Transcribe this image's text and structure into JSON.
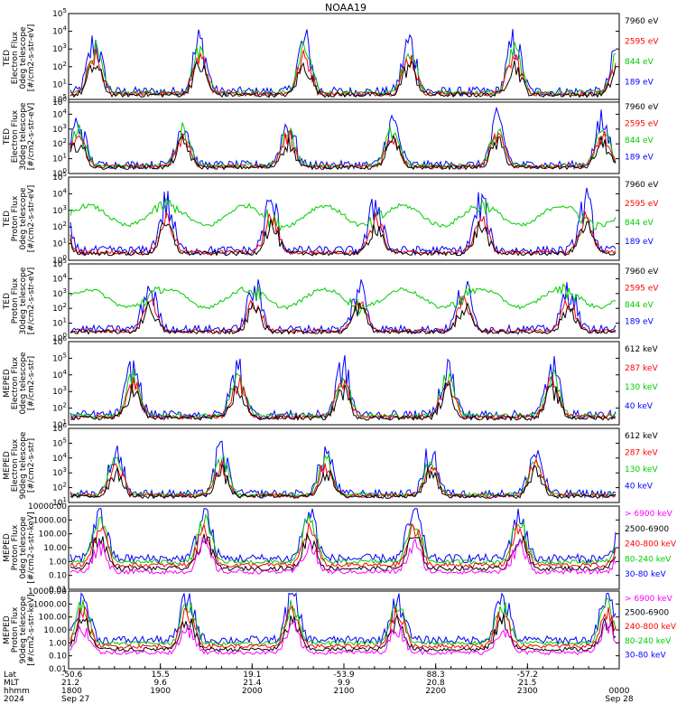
{
  "chart_data": {
    "type": "line",
    "title": "NOAA19",
    "panels": [
      {
        "ylabel": [
          "TED",
          "Electron Flux",
          "0deg telescope",
          "[#/cm2-s-str-eV]"
        ],
        "yticks": [
          "10^0",
          "10^1",
          "10^2",
          "10^3",
          "10^4",
          "10^5"
        ],
        "series": [
          {
            "name": "7960 eV",
            "color": "#000000"
          },
          {
            "name": "2595 eV",
            "color": "#ff0000"
          },
          {
            "name": "844 eV",
            "color": "#00cc00"
          },
          {
            "name": "189 eV",
            "color": "#0000ff"
          }
        ]
      },
      {
        "ylabel": [
          "TED",
          "Electron Flux",
          "30deg telescope",
          "[#/cm2-s-str-eV]"
        ],
        "yticks": [
          "10^0",
          "10^1",
          "10^2",
          "10^3",
          "10^4",
          "10^5"
        ],
        "series": [
          {
            "name": "7960 eV",
            "color": "#000000"
          },
          {
            "name": "2595 eV",
            "color": "#ff0000"
          },
          {
            "name": "844 eV",
            "color": "#00cc00"
          },
          {
            "name": "189 eV",
            "color": "#0000ff"
          }
        ]
      },
      {
        "ylabel": [
          "TED",
          "Proton Flux",
          "0deg telescope",
          "[#/cm2-s-str-eV]"
        ],
        "yticks": [
          "10^0",
          "10^1",
          "10^2",
          "10^3",
          "10^4",
          "10^5"
        ],
        "series": [
          {
            "name": "7960 eV",
            "color": "#000000"
          },
          {
            "name": "2595 eV",
            "color": "#ff0000"
          },
          {
            "name": "844 eV",
            "color": "#00cc00"
          },
          {
            "name": "189 eV",
            "color": "#0000ff"
          }
        ]
      },
      {
        "ylabel": [
          "TED",
          "Proton Flux",
          "30deg telescope",
          "[#/cm2-s-str-eV]"
        ],
        "yticks": [
          "10^0",
          "10^1",
          "10^2",
          "10^3",
          "10^4",
          "10^5"
        ],
        "series": [
          {
            "name": "7960 eV",
            "color": "#000000"
          },
          {
            "name": "2595 eV",
            "color": "#ff0000"
          },
          {
            "name": "844 eV",
            "color": "#00cc00"
          },
          {
            "name": "189 eV",
            "color": "#0000ff"
          }
        ]
      },
      {
        "ylabel": [
          "MEPED",
          "Electron Flux",
          "0deg telescope",
          "[#/cm2-s-str]"
        ],
        "yticks": [
          "10^1",
          "10^2",
          "10^3",
          "10^4",
          "10^5",
          "10^6"
        ],
        "series": [
          {
            "name": "612 keV",
            "color": "#000000"
          },
          {
            "name": "287 keV",
            "color": "#ff0000"
          },
          {
            "name": "130 keV",
            "color": "#00cc00"
          },
          {
            "name": "40 keV",
            "color": "#0000ff"
          }
        ]
      },
      {
        "ylabel": [
          "MEPED",
          "Electron Flux",
          "90deg telescope",
          "[#/cm2-s-str]"
        ],
        "yticks": [
          "10^1",
          "10^2",
          "10^3",
          "10^4",
          "10^5",
          "10^6"
        ],
        "series": [
          {
            "name": "612 keV",
            "color": "#000000"
          },
          {
            "name": "287 keV",
            "color": "#ff0000"
          },
          {
            "name": "130 keV",
            "color": "#00cc00"
          },
          {
            "name": "40 keV",
            "color": "#0000ff"
          }
        ]
      },
      {
        "ylabel": [
          "MEPED",
          "Proton Flux",
          "0deg telescope",
          "[#/cm2-s-str-keV]"
        ],
        "yticks": [
          "0.01",
          "0.10",
          "1.00",
          "10.00",
          "100.00",
          "1000.00",
          "10000.00"
        ],
        "series": [
          {
            "name": "> 6900 keV",
            "color": "#ff00ff"
          },
          {
            "name": "2500-6900",
            "color": "#000000"
          },
          {
            "name": "240-800 keV",
            "color": "#ff0000"
          },
          {
            "name": "80-240 keV",
            "color": "#00cc00"
          },
          {
            "name": "30-80 keV",
            "color": "#0000ff"
          }
        ]
      },
      {
        "ylabel": [
          "MEPED",
          "Proton Flux",
          "90deg telescope",
          "[#/cm2-s-str-keV]"
        ],
        "yticks": [
          "0.01",
          "0.10",
          "1.00",
          "10.00",
          "100.00",
          "1000.00",
          "10000.00"
        ],
        "series": [
          {
            "name": "> 6900 keV",
            "color": "#ff00ff"
          },
          {
            "name": "2500-6900",
            "color": "#000000"
          },
          {
            "name": "240-800 keV",
            "color": "#ff0000"
          },
          {
            "name": "80-240 keV",
            "color": "#00cc00"
          },
          {
            "name": "30-80 keV",
            "color": "#0000ff"
          }
        ]
      }
    ],
    "xaxis": {
      "row_labels": [
        "Lat",
        "MLT",
        "hhmm",
        "2024"
      ],
      "ticks": [
        {
          "lat": "-50.6",
          "mlt": "21.2",
          "hhmm": "1800",
          "date": "Sep 27"
        },
        {
          "lat": "15.5",
          "mlt": "9.6",
          "hhmm": "1900",
          "date": ""
        },
        {
          "lat": "19.1",
          "mlt": "21.4",
          "hhmm": "2000",
          "date": ""
        },
        {
          "lat": "-53.9",
          "mlt": "9.9",
          "hhmm": "2100",
          "date": ""
        },
        {
          "lat": "88.3",
          "mlt": "20.8",
          "hhmm": "2200",
          "date": ""
        },
        {
          "lat": "-57.2",
          "mlt": "21.5",
          "hhmm": "2300",
          "date": ""
        },
        {
          "lat": "",
          "mlt": "",
          "hhmm": "0000",
          "date": "Sep 28"
        }
      ]
    }
  }
}
